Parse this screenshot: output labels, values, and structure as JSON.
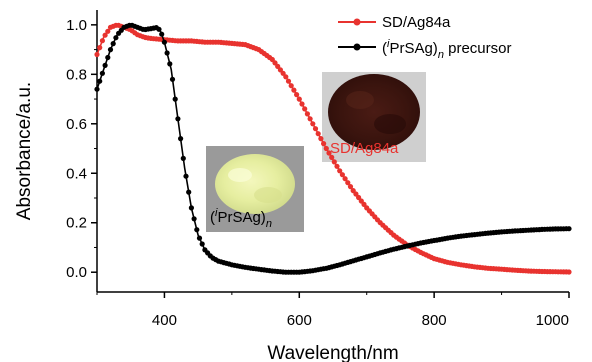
{
  "chart_data": {
    "type": "line",
    "xlabel": "Wavelength/nm",
    "ylabel": "Absorbance/a.u.",
    "xlim": [
      300,
      1000
    ],
    "ylim": [
      -0.08,
      1.06
    ],
    "x_ticks": [
      400,
      600,
      800,
      1000
    ],
    "y_ticks": [
      0.0,
      0.2,
      0.4,
      0.6,
      0.8,
      1.0
    ],
    "y_tick_labels": [
      "0.0",
      "0.2",
      "0.4",
      "0.6",
      "0.8",
      "1.0"
    ],
    "grid": false,
    "legend_position": "top-right",
    "series": [
      {
        "name": "SD/Ag84a",
        "color": "#e8332f",
        "marker": "circle",
        "points": [
          [
            300,
            0.88
          ],
          [
            310,
            0.95
          ],
          [
            320,
            0.99
          ],
          [
            330,
            1.0
          ],
          [
            340,
            0.99
          ],
          [
            350,
            0.98
          ],
          [
            360,
            0.96
          ],
          [
            370,
            0.95
          ],
          [
            380,
            0.945
          ],
          [
            400,
            0.94
          ],
          [
            420,
            0.935
          ],
          [
            440,
            0.935
          ],
          [
            460,
            0.93
          ],
          [
            480,
            0.93
          ],
          [
            500,
            0.925
          ],
          [
            520,
            0.92
          ],
          [
            540,
            0.9
          ],
          [
            560,
            0.86
          ],
          [
            580,
            0.79
          ],
          [
            600,
            0.7
          ],
          [
            620,
            0.6
          ],
          [
            640,
            0.5
          ],
          [
            660,
            0.41
          ],
          [
            680,
            0.33
          ],
          [
            700,
            0.26
          ],
          [
            720,
            0.2
          ],
          [
            740,
            0.15
          ],
          [
            760,
            0.11
          ],
          [
            780,
            0.08
          ],
          [
            800,
            0.055
          ],
          [
            820,
            0.04
          ],
          [
            840,
            0.03
          ],
          [
            860,
            0.022
          ],
          [
            880,
            0.016
          ],
          [
            900,
            0.012
          ],
          [
            920,
            0.008
          ],
          [
            940,
            0.005
          ],
          [
            960,
            0.003
          ],
          [
            980,
            0.002
          ],
          [
            1000,
            0.001
          ]
        ]
      },
      {
        "name": "(iPrSAg)n precursor",
        "color": "#000000",
        "marker": "circle",
        "points": [
          [
            300,
            0.74
          ],
          [
            310,
            0.82
          ],
          [
            320,
            0.9
          ],
          [
            330,
            0.96
          ],
          [
            340,
            0.99
          ],
          [
            350,
            1.0
          ],
          [
            360,
            0.99
          ],
          [
            370,
            0.98
          ],
          [
            380,
            0.985
          ],
          [
            390,
            0.99
          ],
          [
            395,
            0.97
          ],
          [
            400,
            0.93
          ],
          [
            410,
            0.82
          ],
          [
            420,
            0.62
          ],
          [
            430,
            0.42
          ],
          [
            440,
            0.26
          ],
          [
            450,
            0.15
          ],
          [
            460,
            0.09
          ],
          [
            470,
            0.06
          ],
          [
            480,
            0.045
          ],
          [
            500,
            0.03
          ],
          [
            520,
            0.02
          ],
          [
            540,
            0.012
          ],
          [
            560,
            0.005
          ],
          [
            580,
            0.0
          ],
          [
            600,
            0.0
          ],
          [
            620,
            0.006
          ],
          [
            640,
            0.016
          ],
          [
            660,
            0.03
          ],
          [
            680,
            0.046
          ],
          [
            700,
            0.062
          ],
          [
            720,
            0.078
          ],
          [
            740,
            0.093
          ],
          [
            760,
            0.106
          ],
          [
            780,
            0.118
          ],
          [
            800,
            0.128
          ],
          [
            820,
            0.138
          ],
          [
            840,
            0.146
          ],
          [
            860,
            0.152
          ],
          [
            880,
            0.158
          ],
          [
            900,
            0.163
          ],
          [
            920,
            0.167
          ],
          [
            940,
            0.17
          ],
          [
            960,
            0.173
          ],
          [
            980,
            0.175
          ],
          [
            1000,
            0.176
          ]
        ]
      }
    ],
    "legend": [
      {
        "series": 0,
        "label": "SD/Ag84a"
      },
      {
        "series": 1,
        "label_parts": [
          "(",
          "i",
          "PrSAg)",
          "n",
          " precursor"
        ]
      }
    ],
    "insets": [
      {
        "name": "dark-powder-photo",
        "label": "SD/Ag84a",
        "label_color": "#e8332f"
      },
      {
        "name": "yellow-powder-photo",
        "label_parts": [
          "(",
          "i",
          "PrSAg)",
          "n"
        ],
        "label_color": "#000000"
      }
    ]
  }
}
